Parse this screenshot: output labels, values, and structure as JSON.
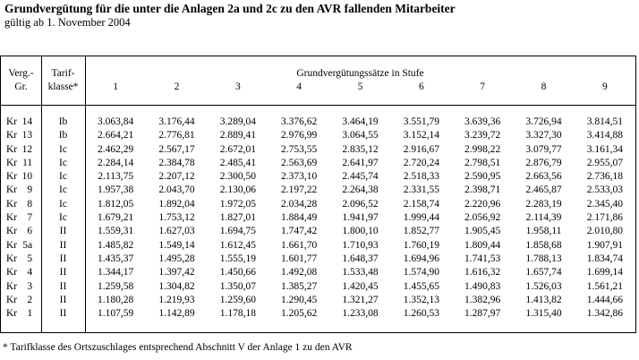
{
  "document": {
    "title": "Grundvergütung für die unter die Anlagen 2a und 2c zu den AVR fallenden Mitarbeiter",
    "subtitle": "gültig ab 1. November 2004",
    "footnote": "* Tarifklasse des Ortszuschlages entsprechend Abschnitt V der Anlage 1 zu den AVR"
  },
  "table": {
    "verg_gr_header": [
      "Verg.-",
      "Gr."
    ],
    "tarifklasse_header": [
      "Tarif-",
      "klasse*"
    ],
    "stufe_group_header": "Grundvergütungssätze in Stufe",
    "stufe_columns": [
      "1",
      "2",
      "3",
      "4",
      "5",
      "6",
      "7",
      "8",
      "9"
    ],
    "rows": [
      {
        "group_prefix": "Kr",
        "group_num": "14",
        "tarifklasse": "Ib",
        "values": [
          "3.063,84",
          "3.176,44",
          "3.289,04",
          "3.376,62",
          "3.464,19",
          "3.551,79",
          "3.639,36",
          "3.726,94",
          "3.814,51"
        ]
      },
      {
        "group_prefix": "Kr",
        "group_num": "13",
        "tarifklasse": "Ib",
        "values": [
          "2.664,21",
          "2.776,81",
          "2.889,41",
          "2.976,99",
          "3.064,55",
          "3.152,14",
          "3.239,72",
          "3.327,30",
          "3.414,88"
        ]
      },
      {
        "group_prefix": "Kr",
        "group_num": "12",
        "tarifklasse": "Ic",
        "values": [
          "2.462,29",
          "2.567,17",
          "2.672,01",
          "2.753,55",
          "2.835,12",
          "2.916,67",
          "2.998,22",
          "3.079,77",
          "3.161,34"
        ]
      },
      {
        "group_prefix": "Kr",
        "group_num": "11",
        "tarifklasse": "Ic",
        "values": [
          "2.284,14",
          "2.384,78",
          "2.485,41",
          "2.563,69",
          "2.641,97",
          "2.720,24",
          "2.798,51",
          "2.876,79",
          "2.955,07"
        ]
      },
      {
        "group_prefix": "Kr",
        "group_num": "10",
        "tarifklasse": "Ic",
        "values": [
          "2.113,75",
          "2.207,12",
          "2.300,50",
          "2.373,10",
          "2.445,74",
          "2.518,33",
          "2.590,95",
          "2.663,56",
          "2.736,18"
        ]
      },
      {
        "group_prefix": "Kr",
        "group_num": "9",
        "tarifklasse": "Ic",
        "values": [
          "1.957,38",
          "2.043,70",
          "2.130,06",
          "2.197,22",
          "2.264,38",
          "2.331,55",
          "2.398,71",
          "2.465,87",
          "2.533,03"
        ]
      },
      {
        "group_prefix": "Kr",
        "group_num": "8",
        "tarifklasse": "Ic",
        "values": [
          "1.812,05",
          "1.892,04",
          "1.972,05",
          "2.034,28",
          "2.096,52",
          "2.158,74",
          "2.220,96",
          "2.283,19",
          "2.345,40"
        ]
      },
      {
        "group_prefix": "Kr",
        "group_num": "7",
        "tarifklasse": "Ic",
        "values": [
          "1.679,21",
          "1.753,12",
          "1.827,01",
          "1.884,49",
          "1.941,97",
          "1.999,44",
          "2.056,92",
          "2.114,39",
          "2.171,86"
        ]
      },
      {
        "group_prefix": "Kr",
        "group_num": "6",
        "tarifklasse": "II",
        "values": [
          "1.559,31",
          "1.627,03",
          "1.694,75",
          "1.747,42",
          "1.800,10",
          "1.852,77",
          "1.905,45",
          "1.958,11",
          "2.010,80"
        ]
      },
      {
        "group_prefix": "Kr",
        "group_num": "5a",
        "tarifklasse": "II",
        "values": [
          "1.485,82",
          "1.549,14",
          "1.612,45",
          "1.661,70",
          "1.710,93",
          "1.760,19",
          "1.809,44",
          "1.858,68",
          "1.907,91"
        ]
      },
      {
        "group_prefix": "Kr",
        "group_num": "5",
        "tarifklasse": "II",
        "values": [
          "1.435,37",
          "1.495,28",
          "1.555,19",
          "1.601,77",
          "1.648,37",
          "1.694,96",
          "1.741,53",
          "1.788,13",
          "1.834,74"
        ]
      },
      {
        "group_prefix": "Kr",
        "group_num": "4",
        "tarifklasse": "II",
        "values": [
          "1.344,17",
          "1.397,42",
          "1.450,66",
          "1.492,08",
          "1.533,48",
          "1.574,90",
          "1.616,32",
          "1.657,74",
          "1.699,14"
        ]
      },
      {
        "group_prefix": "Kr",
        "group_num": "3",
        "tarifklasse": "II",
        "values": [
          "1.259,58",
          "1.304,82",
          "1.350,07",
          "1.385,27",
          "1.420,45",
          "1.455,65",
          "1.490,83",
          "1.526,03",
          "1.561,21"
        ]
      },
      {
        "group_prefix": "Kr",
        "group_num": "2",
        "tarifklasse": "II",
        "values": [
          "1.180,28",
          "1.219,93",
          "1.259,60",
          "1.290,45",
          "1.321,27",
          "1.352,13",
          "1.382,96",
          "1.413,82",
          "1.444,66"
        ]
      },
      {
        "group_prefix": "Kr",
        "group_num": "1",
        "tarifklasse": "II",
        "values": [
          "1.107,59",
          "1.142,89",
          "1.178,18",
          "1.205,62",
          "1.233,08",
          "1.260,53",
          "1.287,97",
          "1.315,40",
          "1.342,86"
        ]
      }
    ]
  },
  "colors": {
    "text": "#000000",
    "background": "#ffffff",
    "border": "#000000"
  }
}
